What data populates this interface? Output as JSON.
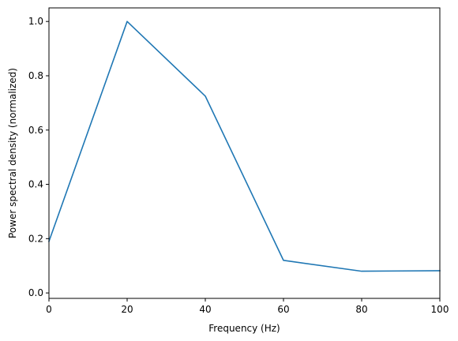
{
  "chart_data": {
    "type": "line",
    "title": "",
    "xlabel": "Frequency (Hz)",
    "ylabel": "Power spectral density (normalized)",
    "xlim": [
      0,
      100
    ],
    "ylim": [
      -0.02,
      1.05
    ],
    "grid": false,
    "x_ticks": [
      0,
      20,
      40,
      60,
      80,
      100
    ],
    "x_tick_labels": [
      "0",
      "20",
      "40",
      "60",
      "80",
      "100"
    ],
    "y_ticks": [
      0.0,
      0.2,
      0.4,
      0.6,
      0.8,
      1.0
    ],
    "y_tick_labels": [
      "0.0",
      "0.2",
      "0.4",
      "0.6",
      "0.8",
      "1.0"
    ],
    "series": [
      {
        "color": "#1f77b4",
        "x": [
          0,
          20,
          40,
          60,
          80,
          100
        ],
        "y": [
          0.19,
          1.0,
          0.725,
          0.12,
          0.08,
          0.082
        ]
      }
    ]
  }
}
